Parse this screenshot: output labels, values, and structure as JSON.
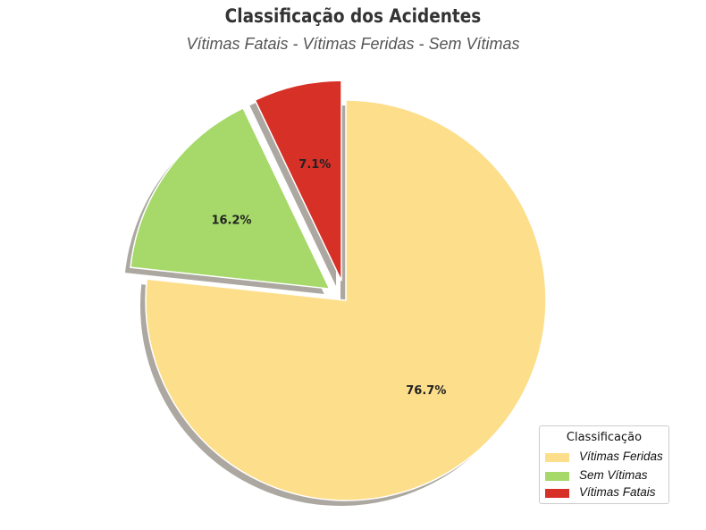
{
  "chart_data": {
    "type": "pie",
    "title": "Classificação dos Acidentes",
    "subtitle": "Vítimas Fatais - Vítimas Feridas - Sem Vítimas",
    "slices": [
      {
        "label": "Vítimas Feridas",
        "value": 76.7,
        "pct_label": "76.7%",
        "color": "#FDDE8A",
        "exploded": false
      },
      {
        "label": "Sem Vítimas",
        "value": 16.2,
        "pct_label": "16.2%",
        "color": "#A6D96A",
        "exploded": true
      },
      {
        "label": "Vítimas Fatais",
        "value": 7.1,
        "pct_label": "7.1%",
        "color": "#D73027",
        "exploded": true
      }
    ],
    "start_angle_deg": 90,
    "direction": "clockwise",
    "shadow": true,
    "legend": {
      "title": "Classificação",
      "placement": "bottom-right"
    }
  }
}
